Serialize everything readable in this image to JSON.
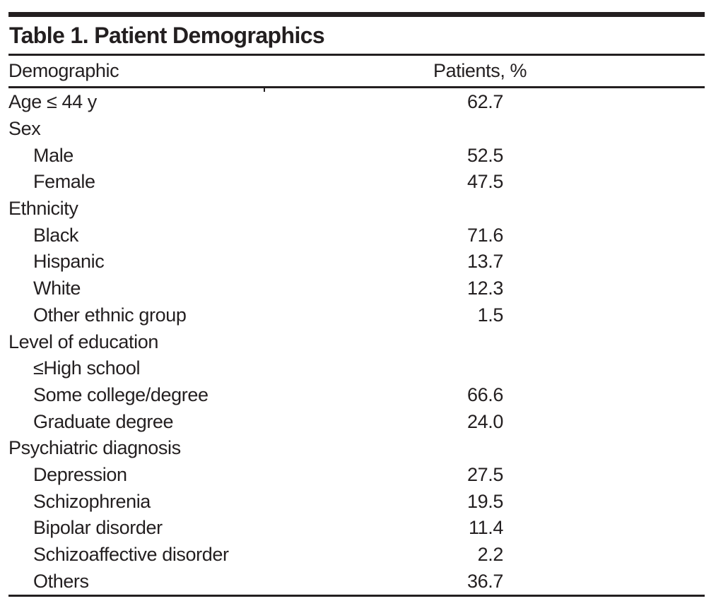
{
  "table": {
    "title": "Table 1. Patient Demographics",
    "columns": [
      "Demographic",
      "Patients, %"
    ],
    "rows": [
      {
        "label": "Age ≤ 44 y",
        "value": "62.7",
        "indent": 0
      },
      {
        "label": "Sex",
        "value": "",
        "indent": 0
      },
      {
        "label": "Male",
        "value": "52.5",
        "indent": 1
      },
      {
        "label": "Female",
        "value": "47.5",
        "indent": 1
      },
      {
        "label": "Ethnicity",
        "value": "",
        "indent": 0
      },
      {
        "label": "Black",
        "value": "71.6",
        "indent": 1
      },
      {
        "label": "Hispanic",
        "value": "13.7",
        "indent": 1
      },
      {
        "label": "White",
        "value": "12.3",
        "indent": 1
      },
      {
        "label": "Other ethnic group",
        "value": "1.5",
        "indent": 1
      },
      {
        "label": "Level of education",
        "value": "",
        "indent": 0
      },
      {
        "label": "≤High school",
        "value": "",
        "indent": 1
      },
      {
        "label": "Some college/degree",
        "value": "66.6",
        "indent": 1
      },
      {
        "label": "Graduate degree",
        "value": "24.0",
        "indent": 1
      },
      {
        "label": "Psychiatric diagnosis",
        "value": "",
        "indent": 0
      },
      {
        "label": "Depression",
        "value": "27.5",
        "indent": 1
      },
      {
        "label": "Schizophrenia",
        "value": "19.5",
        "indent": 1
      },
      {
        "label": "Bipolar disorder",
        "value": "11.4",
        "indent": 1
      },
      {
        "label": "Schizoaffective disorder",
        "value": "2.2",
        "indent": 1
      },
      {
        "label": "Others",
        "value": "36.7",
        "indent": 1
      }
    ],
    "colors": {
      "text": "#231f20",
      "rule": "#231f20",
      "background": "#ffffff"
    }
  }
}
